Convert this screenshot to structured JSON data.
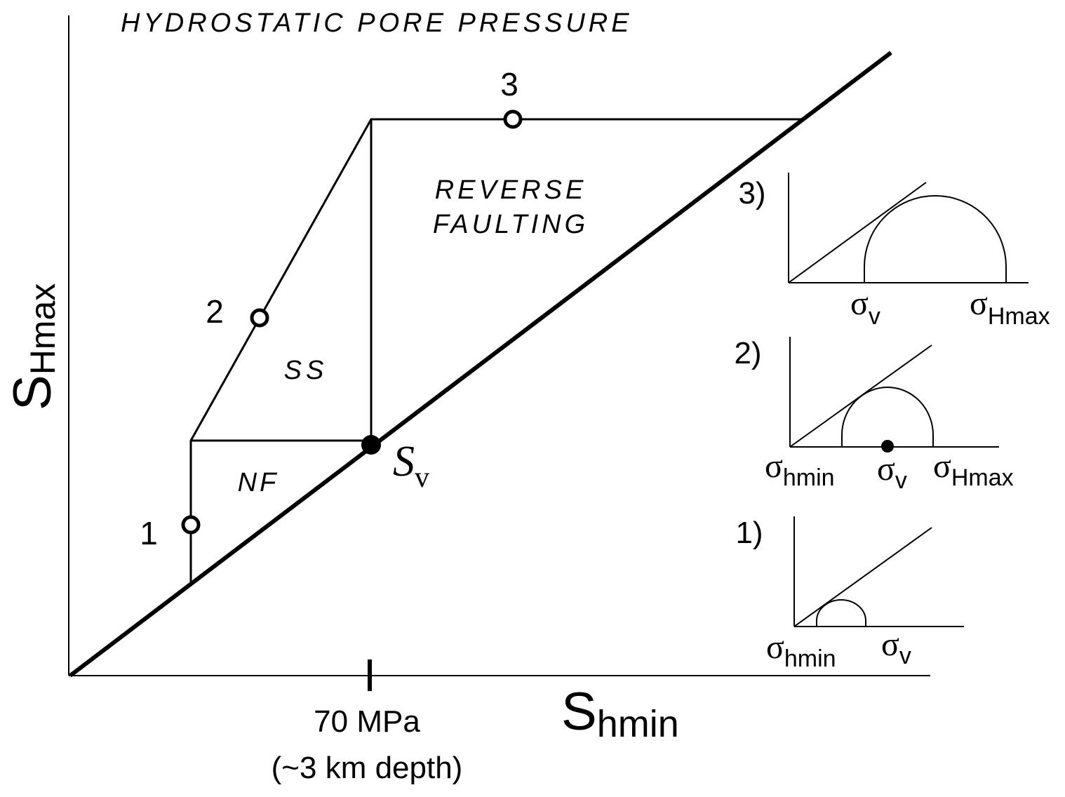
{
  "title": "HYDROSTATIC PORE PRESSURE",
  "axes": {
    "y_label_main": "S",
    "y_label_sub": "Hmax",
    "x_label_main": "S",
    "x_label_sub": "hmin",
    "x_tick_label": "70 MPa",
    "x_tick_note": "(~3 km depth)"
  },
  "regions": {
    "reverse_line1": "REVERSE",
    "reverse_line2": "FAULTING",
    "strike_slip": "SS",
    "normal": "NF"
  },
  "sv_label_main": "S",
  "sv_label_sub": "v",
  "points": {
    "p1": "1",
    "p2": "2",
    "p3": "3"
  },
  "insets": {
    "inset3": {
      "label": "3)",
      "s1": "σ",
      "s1_sub": "v",
      "s2": "σ",
      "s2_sub": "Hmax"
    },
    "inset2": {
      "label": "2)",
      "s1": "σ",
      "s1_sub": "hmin",
      "s2": "σ",
      "s2_sub": "v",
      "s3": "σ",
      "s3_sub": "Hmax"
    },
    "inset1": {
      "label": "1)",
      "s1": "σ",
      "s1_sub": "hmin",
      "s2": "σ",
      "s2_sub": "v"
    }
  }
}
